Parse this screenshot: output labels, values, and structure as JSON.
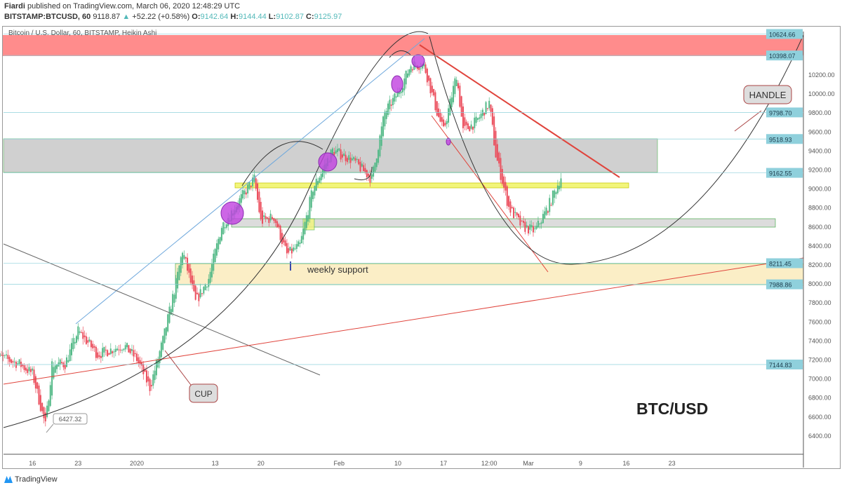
{
  "header": {
    "author": "Fiardi",
    "published": "published on TradingView.com, March 06, 2020 12:48:29 UTC",
    "symbol": "BITSTAMP:BTCUSD, 60",
    "last": "9118.87",
    "change": "+52.22 (+0.58%)",
    "o_label": "O:",
    "o": "9142.64",
    "h_label": "H:",
    "h": "9144.44",
    "l_label": "L:",
    "l": "9102.87",
    "c_label": "C:",
    "c": "9125.97"
  },
  "footer": {
    "brand": "TradingView"
  },
  "chart_data": {
    "type": "candlestick",
    "title": "Bitcoin / U.S. Dollar, 60, BITSTAMP, Heikin Ashi",
    "colors": {
      "up": "#53b987",
      "down": "#eb4d5c"
    },
    "ylim": [
      6200,
      10700
    ],
    "y_ticks": [
      6400,
      6600,
      6800,
      7000,
      7200,
      7400,
      7600,
      7800,
      8000,
      8200,
      8400,
      8600,
      8800,
      9000,
      9200,
      9400,
      9600,
      9800,
      10000,
      10200
    ],
    "x_ticks": [
      {
        "label": "16",
        "date": "2019-12-16"
      },
      {
        "label": "23",
        "date": "2019-12-23"
      },
      {
        "label": "2020",
        "date": "2020-01-01"
      },
      {
        "label": "13",
        "date": "2020-01-13"
      },
      {
        "label": "20",
        "date": "2020-01-20"
      },
      {
        "label": "Feb",
        "date": "2020-02-01"
      },
      {
        "label": "10",
        "date": "2020-02-10"
      },
      {
        "label": "17",
        "date": "2020-02-17"
      },
      {
        "label": "12:00",
        "date": "2020-02-24"
      },
      {
        "label": "Mar",
        "date": "2020-03-01"
      },
      {
        "label": "9",
        "date": "2020-03-09"
      },
      {
        "label": "16",
        "date": "2020-03-16"
      },
      {
        "label": "23",
        "date": "2020-03-23"
      }
    ],
    "price_path": [
      [
        "2019-12-10",
        7250
      ],
      [
        "2019-12-14",
        7150
      ],
      [
        "2019-12-16",
        7050
      ],
      [
        "2019-12-18",
        6500
      ],
      [
        "2019-12-19",
        7150
      ],
      [
        "2019-12-21",
        7150
      ],
      [
        "2019-12-23",
        7500
      ],
      [
        "2019-12-26",
        7250
      ],
      [
        "2019-12-30",
        7350
      ],
      [
        "2020-01-01",
        7200
      ],
      [
        "2020-01-03",
        6900
      ],
      [
        "2020-01-05",
        7400
      ],
      [
        "2020-01-07",
        8000
      ],
      [
        "2020-01-08",
        8350
      ],
      [
        "2020-01-10",
        7800
      ],
      [
        "2020-01-12",
        8050
      ],
      [
        "2020-01-14",
        8600
      ],
      [
        "2020-01-17",
        8900
      ],
      [
        "2020-01-19",
        9100
      ],
      [
        "2020-01-20",
        8650
      ],
      [
        "2020-01-22",
        8700
      ],
      [
        "2020-01-24",
        8300
      ],
      [
        "2020-01-26",
        8400
      ],
      [
        "2020-01-28",
        9000
      ],
      [
        "2020-01-31",
        9400
      ],
      [
        "2020-02-03",
        9300
      ],
      [
        "2020-02-06",
        9100
      ],
      [
        "2020-02-08",
        9800
      ],
      [
        "2020-02-10",
        10000
      ],
      [
        "2020-02-12",
        10300
      ],
      [
        "2020-02-14",
        10300
      ],
      [
        "2020-02-16",
        9800
      ],
      [
        "2020-02-17",
        9600
      ],
      [
        "2020-02-19",
        10200
      ],
      [
        "2020-02-20",
        9600
      ],
      [
        "2020-02-22",
        9700
      ],
      [
        "2020-02-24",
        9900
      ],
      [
        "2020-02-25",
        9350
      ],
      [
        "2020-02-27",
        8800
      ],
      [
        "2020-02-29",
        8600
      ],
      [
        "2020-03-02",
        8550
      ],
      [
        "2020-03-04",
        8800
      ],
      [
        "2020-03-06",
        9120
      ]
    ],
    "levels": [
      "10624.66",
      "10398.07",
      "9798.70",
      "9518.93",
      "9162.55",
      "8211.45",
      "7988.86",
      "7144.83"
    ],
    "annotations": {
      "handle": "HANDLE",
      "cup": "CUP",
      "support": "weekly support",
      "pair": "BTC/USD",
      "low": "6427.32"
    }
  }
}
